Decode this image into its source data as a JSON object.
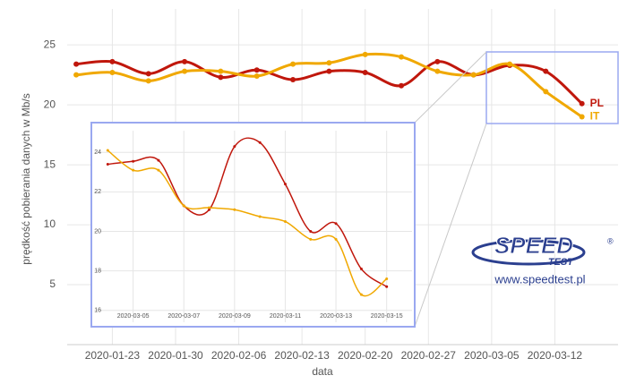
{
  "chart_data": [
    {
      "type": "line",
      "x_label": "data",
      "y_label": "prędkość pobierania danych w Mb/s",
      "x": [
        "2020-01-19",
        "2020-01-23",
        "2020-01-27",
        "2020-01-31",
        "2020-02-04",
        "2020-02-08",
        "2020-02-12",
        "2020-02-16",
        "2020-02-20",
        "2020-02-24",
        "2020-02-28",
        "2020-03-03",
        "2020-03-07",
        "2020-03-11",
        "2020-03-15"
      ],
      "series": [
        {
          "name": "PL",
          "color": "#c0170c",
          "values": [
            23.4,
            23.6,
            22.6,
            23.6,
            22.3,
            22.9,
            22.1,
            22.8,
            22.7,
            21.6,
            23.6,
            22.5,
            23.3,
            22.8,
            20.1
          ]
        },
        {
          "name": "IT",
          "color": "#f0a800",
          "values": [
            22.5,
            22.7,
            22.0,
            22.8,
            22.8,
            22.4,
            23.4,
            23.5,
            24.2,
            24.0,
            22.8,
            22.5,
            23.4,
            21.1,
            19.0
          ]
        }
      ],
      "xlim": [
        "2020-01-18",
        "2020-03-19"
      ],
      "xticks": [
        "2020-01-23",
        "2020-01-30",
        "2020-02-06",
        "2020-02-13",
        "2020-02-20",
        "2020-02-27",
        "2020-03-05",
        "2020-03-12"
      ],
      "ylim": [
        0,
        28
      ],
      "yticks": [
        5,
        10,
        15,
        20,
        25
      ],
      "grid": true
    },
    {
      "type": "line",
      "x": [
        "2020-03-04",
        "2020-03-05",
        "2020-03-06",
        "2020-03-07",
        "2020-03-08",
        "2020-03-09",
        "2020-03-10",
        "2020-03-11",
        "2020-03-12",
        "2020-03-13",
        "2020-03-14",
        "2020-03-15"
      ],
      "series": [
        {
          "color": "#c0170c",
          "values": [
            23.4,
            23.55,
            23.6,
            21.3,
            21.1,
            24.3,
            24.5,
            22.4,
            20.0,
            20.4,
            18.1,
            17.2
          ]
        },
        {
          "color": "#f0a800",
          "values": [
            24.1,
            23.1,
            23.1,
            21.3,
            21.2,
            21.1,
            20.75,
            20.5,
            19.6,
            19.6,
            16.8,
            17.6
          ]
        }
      ],
      "xlim": [
        "2020-03-03",
        "2020-03-16"
      ],
      "xticks": [
        "2020-03-05",
        "2020-03-07",
        "2020-03-09",
        "2020-03-11",
        "2020-03-13",
        "2020-03-15"
      ],
      "ylim": [
        15.4,
        25.1
      ],
      "yticks": [
        16,
        18,
        20,
        22,
        24
      ],
      "grid": true
    }
  ],
  "logo": {
    "brand": "SPEED",
    "sub": "TEST",
    "mark": "®",
    "url": "www.speedtest.pl"
  }
}
